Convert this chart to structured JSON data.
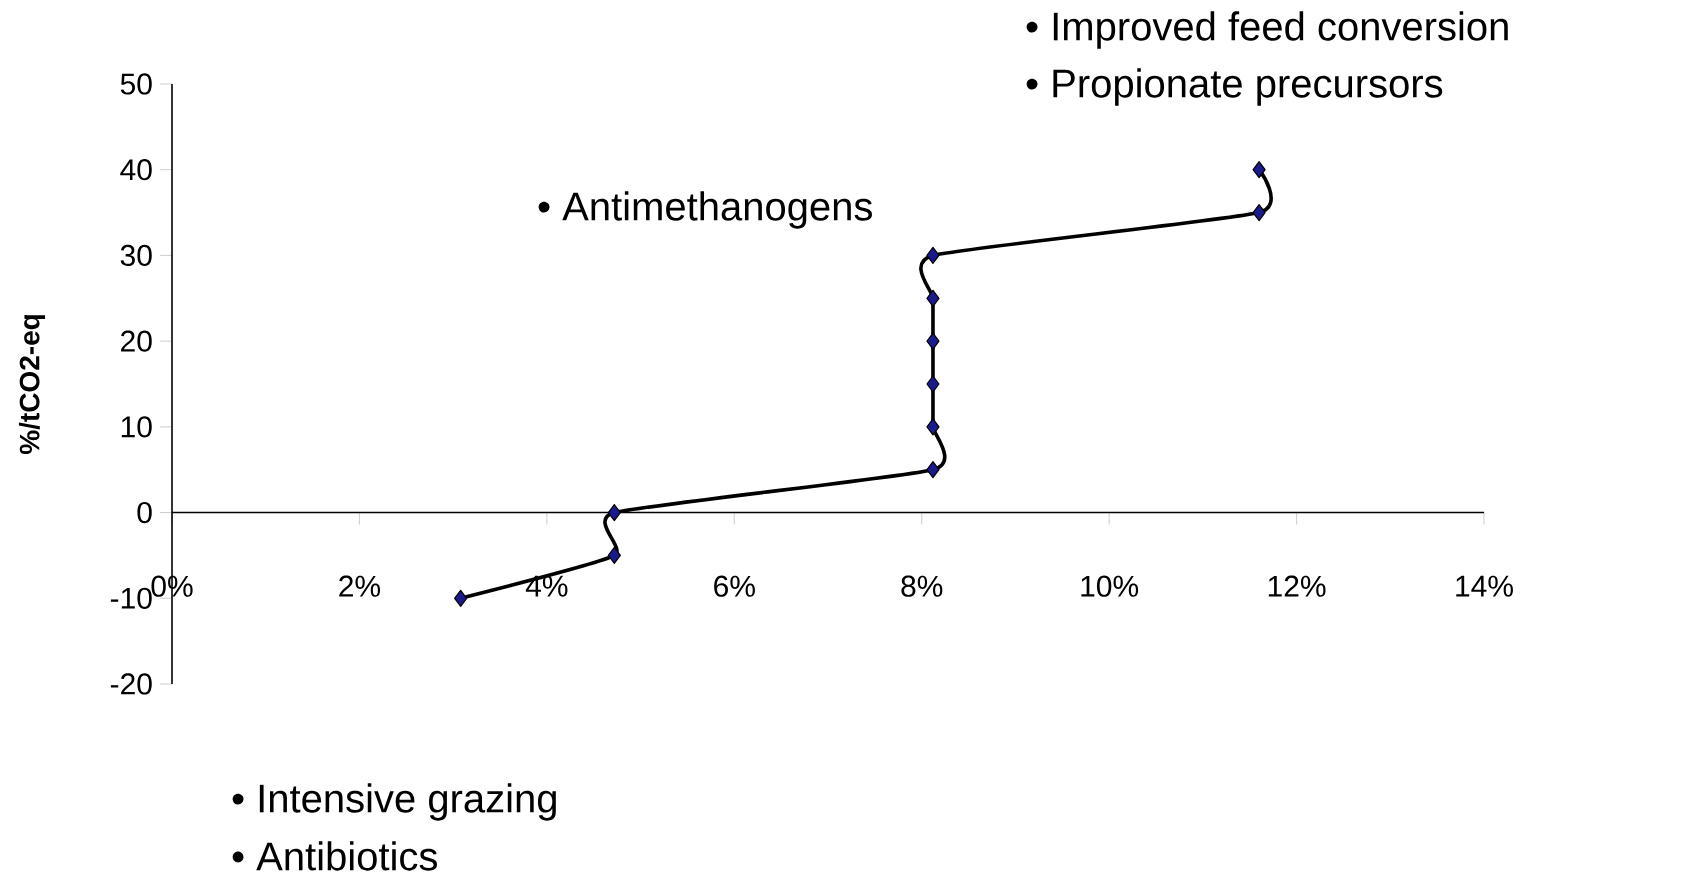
{
  "chart_data": {
    "type": "line",
    "ylabel": "%/tCO2-eq",
    "x": [
      3.08,
      4.72,
      4.72,
      8.12,
      8.12,
      8.12,
      8.12,
      8.12,
      8.12,
      11.6,
      11.6
    ],
    "series": [
      {
        "color": "#1a1a8c",
        "values": [
          -10,
          -5,
          0,
          5,
          10,
          15,
          20,
          25,
          30,
          35,
          40
        ]
      }
    ],
    "xlim": [
      0,
      14
    ],
    "xticks": [
      {
        "value": 0,
        "label": "0%"
      },
      {
        "value": 2,
        "label": "2%"
      },
      {
        "value": 4,
        "label": "4%"
      },
      {
        "value": 6,
        "label": "6%"
      },
      {
        "value": 8,
        "label": "8%"
      },
      {
        "value": 10,
        "label": "10%"
      },
      {
        "value": 12,
        "label": "12%"
      },
      {
        "value": 14,
        "label": "14%"
      }
    ],
    "ylim": [
      -20,
      50
    ],
    "yticks": [
      -20,
      -10,
      0,
      10,
      20,
      30,
      40,
      50
    ],
    "marker": "diamond",
    "grid": false,
    "annotations": [
      "• Improved feed conversion",
      "• Propionate precursors",
      "• Antimethanogens",
      "• Intensive grazing",
      "• Antibiotics"
    ]
  }
}
